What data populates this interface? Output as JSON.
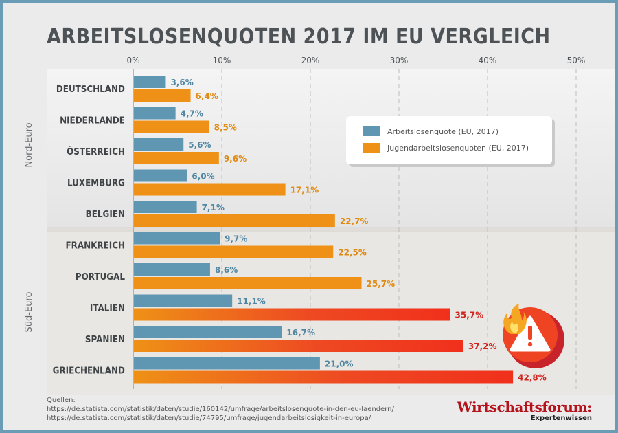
{
  "chart_data": {
    "type": "bar",
    "orientation": "horizontal",
    "title": "ARBEITSLOSENQUOTEN 2017 IM EU VERGLEICH",
    "categories": [
      "DEUTSCHLAND",
      "NIEDERLANDE",
      "ÖSTERREICH",
      "LUXEMBURG",
      "BELGIEN",
      "FRANKREICH",
      "PORTUGAL",
      "ITALIEN",
      "SPANIEN",
      "GRIECHENLAND"
    ],
    "groups": [
      {
        "label": "Nord-Euro",
        "categories": [
          "DEUTSCHLAND",
          "NIEDERLANDE",
          "ÖSTERREICH",
          "LUXEMBURG",
          "BELGIEN"
        ]
      },
      {
        "label": "Süd-Euro",
        "categories": [
          "FRANKREICH",
          "PORTUGAL",
          "ITALIEN",
          "SPANIEN",
          "GRIECHENLAND"
        ]
      }
    ],
    "series": [
      {
        "name": "Arbeitslosenquote  (EU, 2017)",
        "color": "#5f96b1",
        "values": [
          3.6,
          4.7,
          5.6,
          6.0,
          7.1,
          9.7,
          8.6,
          11.1,
          16.7,
          21.0
        ],
        "labels": [
          "3,6%",
          "4,7%",
          "5,6%",
          "6,0%",
          "7,1%",
          "9,7%",
          "8,6%",
          "11,1%",
          "16,7%",
          "21,0%"
        ]
      },
      {
        "name": "Jugendarbeitslosenquoten  (EU, 2017)",
        "color": "#ee9116",
        "values": [
          6.4,
          8.5,
          9.6,
          17.1,
          22.7,
          22.5,
          25.7,
          35.7,
          37.2,
          42.8
        ],
        "labels": [
          "6,4%",
          "8,5%",
          "9,6%",
          "17,1%",
          "22,7%",
          "22,5%",
          "25,7%",
          "35,7%",
          "37,2%",
          "42,8%"
        ]
      }
    ],
    "highlight_categories": [
      "ITALIEN",
      "SPANIEN",
      "GRIECHENLAND"
    ],
    "highlight_color": "#ee4a22",
    "label_color_highlight": "#d1241e",
    "xlim": [
      0,
      50
    ],
    "xticks": [
      0,
      10,
      20,
      30,
      40,
      50
    ],
    "xtick_labels": [
      "0%",
      "10%",
      "20%",
      "30%",
      "40%",
      "50%"
    ],
    "grid": true,
    "legend_position": "top-right"
  },
  "colors": {
    "title": "#4d5256",
    "category_label": "#3f4447",
    "blue_label": "#4f87a3",
    "orange_label": "#e08a12"
  },
  "warning_icon": "warning-fire-icon",
  "sources": {
    "heading": "Quellen:",
    "lines": [
      "https://de.statista.com/statistik/daten/studie/160142/umfrage/arbeitslosenquote-in-den-eu-laendern/",
      "https://de.statista.com/statistik/daten/studie/74795/umfrage/jugendarbeitslosigkeit-in-europa/"
    ]
  },
  "brand": {
    "name": "Wirtschaftsforum:",
    "tagline": "Expertenwissen"
  }
}
